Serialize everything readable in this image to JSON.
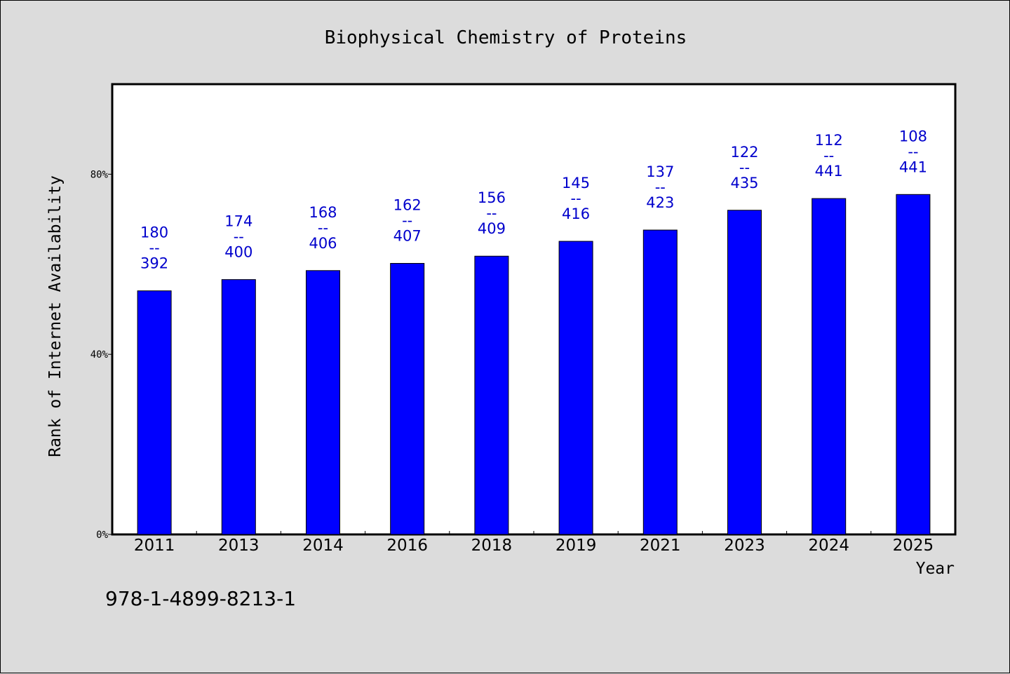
{
  "chart_data": {
    "type": "bar",
    "title": "Biophysical Chemistry of Proteins",
    "xlabel": "Year",
    "ylabel": "Rank of Internet Availability",
    "footer": "978-1-4899-8213-1",
    "categories": [
      "2011",
      "2013",
      "2014",
      "2016",
      "2018",
      "2019",
      "2021",
      "2023",
      "2024",
      "2025"
    ],
    "series": [
      {
        "values": [
          54.1,
          56.6,
          58.6,
          60.2,
          61.8,
          65.1,
          67.6,
          72.0,
          74.6,
          75.5
        ],
        "labels": [
          "180\n--\n392",
          "174\n--\n400",
          "168\n--\n406",
          "162\n--\n407",
          "156\n--\n409",
          "145\n--\n416",
          "137\n--\n423",
          "122\n--\n435",
          "112\n--\n441",
          "108\n--\n441"
        ]
      }
    ],
    "yticks": [
      "0%",
      "40%",
      "80%"
    ],
    "ytick_values": [
      0,
      40,
      80
    ],
    "ylim": [
      0,
      100
    ],
    "bar_color": "#0000ff",
    "label_color": "#0000cc",
    "background": "#dcdcdc",
    "plot_background": "#ffffff",
    "grid": false
  }
}
